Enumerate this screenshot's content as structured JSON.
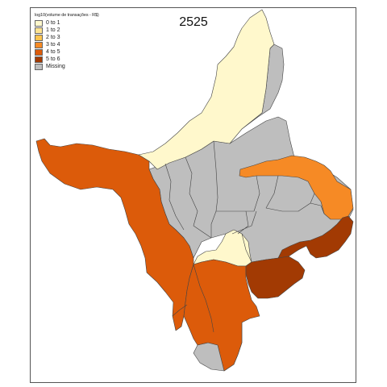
{
  "map": {
    "title": "2525",
    "legend": {
      "title": "log10(volume de transações - R$)",
      "items": [
        {
          "label": "0 to 1",
          "color": "#FFF8CC"
        },
        {
          "label": "1 to 2",
          "color": "#FEE391"
        },
        {
          "label": "2 to 3",
          "color": "#FEC44F"
        },
        {
          "label": "3 to 4",
          "color": "#F68A25"
        },
        {
          "label": "4 to 5",
          "color": "#DC5B0A"
        },
        {
          "label": "5 to 6",
          "color": "#A23A03"
        },
        {
          "label": "Missing",
          "color": "#BEBEBE"
        }
      ]
    },
    "colors": {
      "border": "#444444",
      "frame": "#555555",
      "background": "#FFFFFF"
    }
  }
}
